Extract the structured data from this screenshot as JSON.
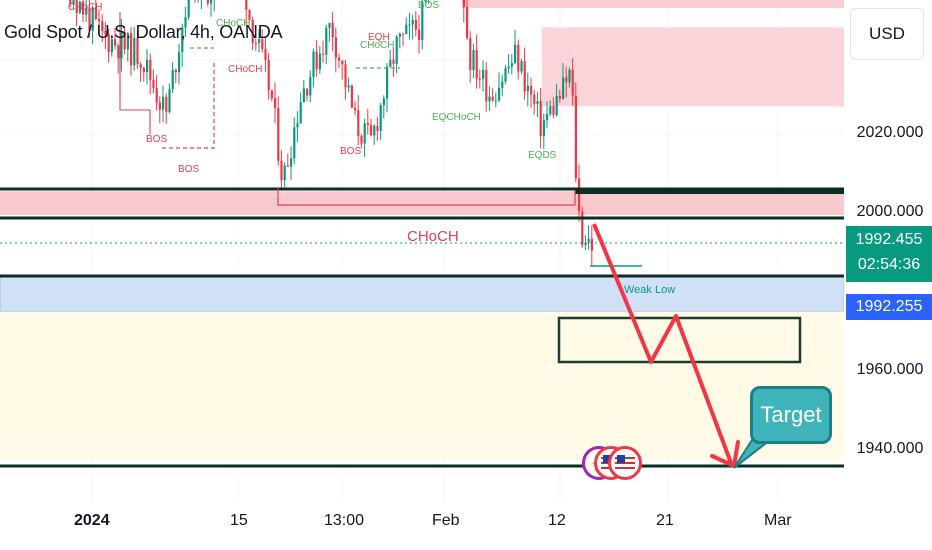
{
  "header": {
    "title": "Gold Spot / U.S. Dollar, 4h, OANDA",
    "currency": "USD"
  },
  "price_axis": {
    "labels": [
      "2020.000",
      "2000.000",
      "1960.000",
      "1940.000"
    ],
    "current_price": "1992.455",
    "countdown": "02:54:36",
    "cursor_price": "1992.255"
  },
  "time_axis": {
    "labels": [
      "2024",
      "15",
      "13:00",
      "Feb",
      "12",
      "21",
      "Mar"
    ]
  },
  "annotations": {
    "choch_main": "CHoCH",
    "weak_low": "Weak Low",
    "target": "Target",
    "chart_labels": [
      {
        "text": "CHoCH",
        "color": "#e04050"
      },
      {
        "text": "CHoCH",
        "color": "#4caf50"
      },
      {
        "text": "CHoCH",
        "color": "#e04050"
      },
      {
        "text": "BOS",
        "color": "#e04050"
      },
      {
        "text": "BOS",
        "color": "#e04050"
      },
      {
        "text": "EQH",
        "color": "#e04050"
      },
      {
        "text": "CHoCH",
        "color": "#4caf50"
      },
      {
        "text": "BOS",
        "color": "#e04050"
      },
      {
        "text": "EQCHoCH",
        "color": "#4caf50"
      },
      {
        "text": "EQDS",
        "color": "#4caf50"
      },
      {
        "text": "BOS",
        "color": "#4caf50"
      }
    ]
  },
  "colors": {
    "bull": "#089981",
    "bear": "#f23645",
    "red_zone": "#f9c9cf",
    "blue_zone": "#cfe0f7",
    "yellow_zone": "#fffbe6",
    "arrow": "#f23645",
    "target_fill": "#3fb4bb"
  },
  "chart_data": {
    "type": "candlestick",
    "title": "Gold Spot / U.S. Dollar, 4h, OANDA",
    "y_axis_ticks": [
      2020,
      2000,
      1960,
      1940
    ],
    "last_price": 1992.455,
    "x_axis_ticks": [
      "2024",
      "15",
      "13:00",
      "Feb",
      "12",
      "21",
      "Mar"
    ],
    "levels": [
      2005.5,
      2003,
      1999.5,
      1984.5,
      1937.5
    ],
    "zones": [
      {
        "kind": "supply",
        "from": 2003,
        "to": 1999.5
      },
      {
        "kind": "supply",
        "from": 2047,
        "to": 2027
      },
      {
        "kind": "demand",
        "from": 1985,
        "to": 1975
      },
      {
        "kind": "demand",
        "from": 1975,
        "to": 1937
      }
    ],
    "projection_path": [
      1999.4,
      1971,
      1975,
      1958,
      1975,
      1940
    ]
  }
}
